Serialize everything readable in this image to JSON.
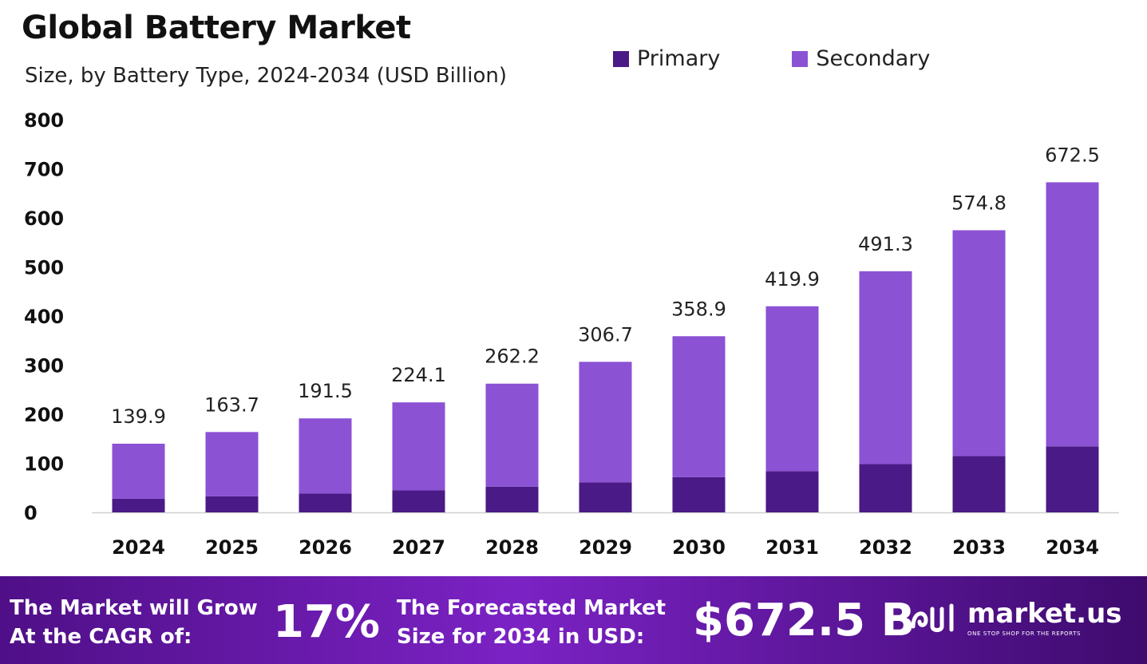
{
  "header": {
    "title": "Global Battery Market",
    "subtitle": "Size, by Battery  Type, 2024-2034 (USD Billion)"
  },
  "legend": {
    "items": [
      {
        "label": "Primary",
        "color": "#4a1a86"
      },
      {
        "label": "Secondary",
        "color": "#8b52d4"
      }
    ]
  },
  "chart_data": {
    "type": "bar",
    "stacked": true,
    "categories": [
      "2024",
      "2025",
      "2026",
      "2027",
      "2028",
      "2029",
      "2030",
      "2031",
      "2032",
      "2033",
      "2034"
    ],
    "series": [
      {
        "name": "Primary",
        "color": "#4a1a86",
        "values": [
          27.9,
          32.7,
          38.3,
          44.8,
          52.4,
          61.3,
          71.8,
          84.0,
          98.3,
          115.0,
          134.5
        ]
      },
      {
        "name": "Secondary",
        "color": "#8b52d4",
        "values": [
          112.0,
          131.0,
          153.2,
          179.3,
          209.8,
          245.4,
          287.1,
          335.9,
          393.0,
          459.8,
          538.0
        ]
      }
    ],
    "totals": [
      "139.9",
      "163.7",
      "191.5",
      "224.1",
      "262.2",
      "306.7",
      "358.9",
      "419.9",
      "491.3",
      "574.8",
      "672.5"
    ],
    "yticks": [
      "0",
      "100",
      "200",
      "300",
      "400",
      "500",
      "600",
      "700",
      "800"
    ],
    "ylim": [
      0,
      800
    ],
    "grid": false,
    "legend_position": "top-right"
  },
  "footer": {
    "cagr_label_line1": "The Market will Grow",
    "cagr_label_line2": "At the CAGR of:",
    "cagr_value": "17%",
    "forecast_label_line1": "The Forecasted Market",
    "forecast_label_line2": "Size for 2034 in USD:",
    "forecast_value": "$672.5 B",
    "brand_name": "market.us",
    "brand_tagline": "ONE STOP SHOP FOR THE REPORTS",
    "brand_icon": "market-us-logo-icon"
  }
}
